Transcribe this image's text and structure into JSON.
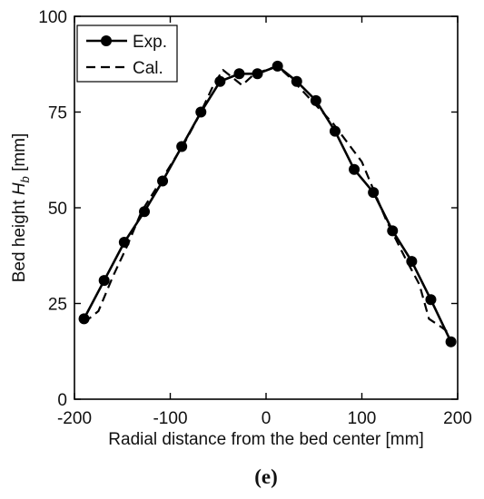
{
  "chart_data": {
    "type": "line",
    "xlabel": "Radial distance from the bed center [mm]",
    "ylabel_prefix": "Bed height ",
    "ylabel_symbol": "H",
    "ylabel_subscript": "b",
    "ylabel_unit": " [mm]",
    "panel_label": "(e)",
    "xlim": [
      -200,
      200
    ],
    "ylim": [
      0,
      100
    ],
    "xticks": [
      -200,
      -100,
      0,
      100,
      200
    ],
    "yticks": [
      0,
      25,
      50,
      75,
      100
    ],
    "x_tick_labels": [
      "-200",
      "-100",
      "0",
      "100",
      "200"
    ],
    "y_tick_labels": [
      "0",
      "25",
      "50",
      "75",
      "100"
    ],
    "legend_position": "top-left",
    "grid": false,
    "series": [
      {
        "name": "Exp.",
        "style": "solid-with-markers",
        "color": "#000000",
        "x": [
          -190,
          -169,
          -148,
          -127,
          -108,
          -88,
          -68,
          -48,
          -28,
          -9,
          12,
          32,
          52,
          72,
          92,
          112,
          132,
          152,
          172,
          193
        ],
        "y": [
          21,
          31,
          41,
          49,
          57,
          66,
          75,
          83,
          85,
          85,
          87,
          83,
          78,
          70,
          60,
          54,
          44,
          36,
          26,
          15
        ]
      },
      {
        "name": "Cal.",
        "style": "dashed",
        "color": "#000000",
        "x": [
          -190,
          -175,
          -160,
          -145,
          -130,
          -115,
          -100,
          -85,
          -70,
          -55,
          -45,
          -35,
          -25,
          -12,
          0,
          12,
          25,
          40,
          55,
          70,
          85,
          100,
          115,
          125,
          135,
          145,
          160,
          170,
          182,
          193
        ],
        "y": [
          20,
          23,
          32,
          40,
          49,
          55,
          61,
          67,
          74,
          82,
          86,
          84,
          82,
          85,
          86,
          87,
          84,
          80,
          76,
          72,
          67,
          62,
          53,
          47,
          42,
          37,
          30,
          21,
          19,
          17
        ]
      }
    ]
  }
}
